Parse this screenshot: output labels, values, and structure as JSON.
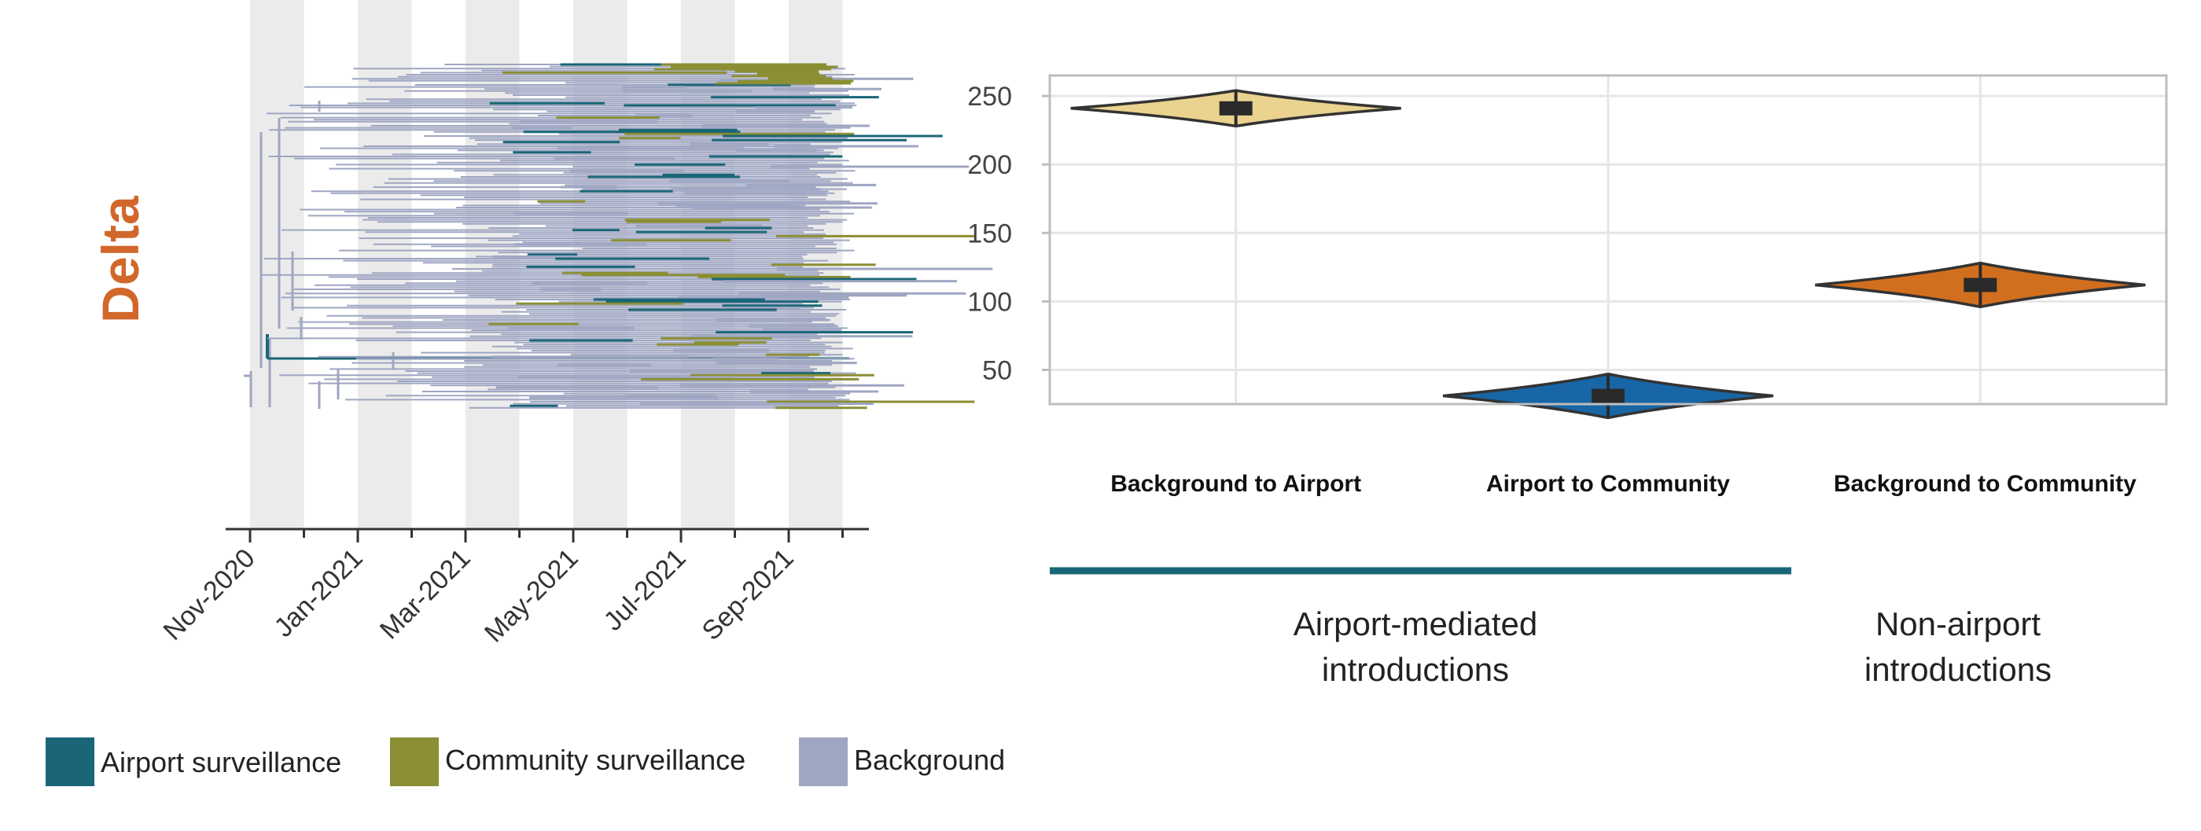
{
  "colors": {
    "airport": "#1a6678",
    "community": "#8b8e33",
    "background": "#9fa6c2",
    "violin1": "#ead28f",
    "violin2": "#1866a6",
    "violin3": "#d16f1f",
    "variant": "#d1672a",
    "band": "#ebebeb"
  },
  "chart_data": [
    {
      "type": "tree",
      "variant_label": "Delta",
      "x_tick_labels": [
        "Nov-2020",
        "Jan-2021",
        "Mar-2021",
        "May-2021",
        "Jul-2021",
        "Sep-2021"
      ],
      "x_range": [
        "2020-11-01",
        "2021-10-15"
      ],
      "legend": [
        {
          "label": "Airport surveillance",
          "color_key": "airport"
        },
        {
          "label": "Community surveillance",
          "color_key": "community"
        },
        {
          "label": "Background",
          "color_key": "background"
        }
      ],
      "legend_placement": "bottom-left"
    },
    {
      "type": "violin",
      "categories": [
        "Background to Airport",
        "Airport to Community",
        "Background to Community"
      ],
      "values": [
        241,
        31,
        112
      ],
      "ylim": [
        25,
        265
      ],
      "yticks": [
        50,
        100,
        150,
        200,
        250
      ],
      "grid": true,
      "groups": [
        {
          "label_line1": "Airport-mediated",
          "label_line2": "introductions",
          "categories": [
            0,
            1
          ]
        },
        {
          "label_line1": "Non-airport",
          "label_line2": "introductions",
          "categories": [
            2
          ]
        }
      ]
    }
  ]
}
